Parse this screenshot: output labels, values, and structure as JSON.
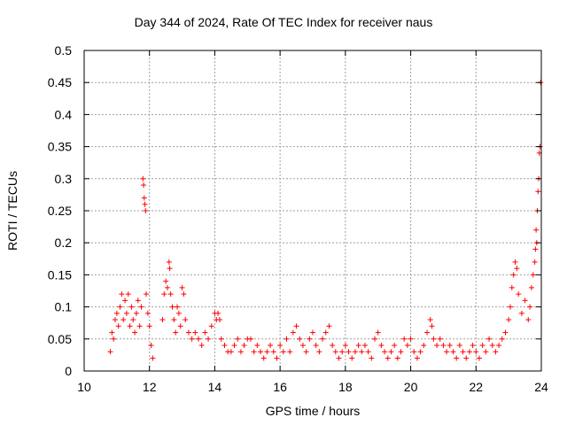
{
  "chart_data": {
    "type": "scatter",
    "title": "Day 344 of 2024, Rate Of TEC Index for receiver naus",
    "xlabel": "GPS time / hours",
    "ylabel": "ROTI / TECUs",
    "xlim": [
      10,
      24
    ],
    "ylim": [
      0,
      0.5
    ],
    "xticks": [
      "10",
      "12",
      "14",
      "16",
      "18",
      "20",
      "22",
      "24"
    ],
    "yticks": [
      "0",
      "0.05",
      "0.1",
      "0.15",
      "0.2",
      "0.25",
      "0.3",
      "0.35",
      "0.4",
      "0.45",
      "0.5"
    ],
    "grid": true,
    "marker": "+",
    "marker_color": "#ff0000",
    "series": [
      {
        "x": [
          10.8,
          10.85,
          10.9,
          10.95,
          11.0,
          11.05,
          11.1,
          11.15,
          11.2,
          11.25,
          11.3,
          11.35,
          11.4,
          11.45,
          11.5,
          11.55,
          11.6,
          11.65,
          11.7,
          11.75,
          11.8,
          11.82,
          11.84,
          11.86,
          11.88,
          11.9,
          11.95,
          12.0,
          12.05,
          12.1,
          12.4,
          12.45,
          12.5,
          12.55,
          12.6,
          12.62,
          12.65,
          12.7,
          12.75,
          12.8,
          12.85,
          12.9,
          12.95,
          13.0,
          13.05,
          13.1,
          13.2,
          13.3,
          13.4,
          13.5,
          13.6,
          13.7,
          13.8,
          13.9,
          14.0,
          14.05,
          14.1,
          14.15,
          14.2,
          14.3,
          14.4,
          14.5,
          14.6,
          14.7,
          14.8,
          14.9,
          15.0,
          15.1,
          15.2,
          15.3,
          15.4,
          15.5,
          15.6,
          15.7,
          15.8,
          15.9,
          16.0,
          16.1,
          16.2,
          16.3,
          16.4,
          16.5,
          16.6,
          16.7,
          16.8,
          16.9,
          17.0,
          17.1,
          17.2,
          17.3,
          17.4,
          17.5,
          17.6,
          17.7,
          17.8,
          17.9,
          18.0,
          18.1,
          18.2,
          18.3,
          18.4,
          18.5,
          18.6,
          18.7,
          18.8,
          18.9,
          19.0,
          19.1,
          19.2,
          19.3,
          19.4,
          19.5,
          19.6,
          19.7,
          19.8,
          19.9,
          20.0,
          20.1,
          20.2,
          20.3,
          20.4,
          20.5,
          20.6,
          20.65,
          20.7,
          20.8,
          20.9,
          21.0,
          21.1,
          21.2,
          21.3,
          21.4,
          21.5,
          21.6,
          21.7,
          21.8,
          21.9,
          22.0,
          22.1,
          22.2,
          22.3,
          22.4,
          22.5,
          22.6,
          22.7,
          22.8,
          22.9,
          23.0,
          23.05,
          23.1,
          23.15,
          23.2,
          23.25,
          23.3,
          23.4,
          23.5,
          23.6,
          23.65,
          23.7,
          23.75,
          23.8,
          23.82,
          23.84,
          23.86,
          23.88,
          23.9,
          23.92,
          23.94,
          23.96,
          23.98
        ],
        "y": [
          0.03,
          0.06,
          0.05,
          0.08,
          0.09,
          0.07,
          0.1,
          0.12,
          0.08,
          0.11,
          0.09,
          0.12,
          0.07,
          0.1,
          0.08,
          0.06,
          0.09,
          0.11,
          0.07,
          0.1,
          0.3,
          0.29,
          0.27,
          0.26,
          0.25,
          0.12,
          0.09,
          0.07,
          0.04,
          0.02,
          0.08,
          0.12,
          0.14,
          0.13,
          0.17,
          0.16,
          0.12,
          0.1,
          0.08,
          0.06,
          0.1,
          0.09,
          0.07,
          0.13,
          0.12,
          0.08,
          0.06,
          0.05,
          0.06,
          0.05,
          0.04,
          0.06,
          0.05,
          0.07,
          0.09,
          0.08,
          0.09,
          0.08,
          0.05,
          0.04,
          0.03,
          0.03,
          0.04,
          0.05,
          0.03,
          0.04,
          0.05,
          0.05,
          0.03,
          0.04,
          0.03,
          0.02,
          0.03,
          0.04,
          0.03,
          0.02,
          0.04,
          0.03,
          0.05,
          0.03,
          0.06,
          0.07,
          0.05,
          0.04,
          0.03,
          0.05,
          0.06,
          0.04,
          0.03,
          0.05,
          0.06,
          0.07,
          0.04,
          0.03,
          0.02,
          0.03,
          0.04,
          0.03,
          0.02,
          0.03,
          0.04,
          0.03,
          0.04,
          0.03,
          0.02,
          0.05,
          0.06,
          0.04,
          0.03,
          0.02,
          0.03,
          0.04,
          0.02,
          0.03,
          0.05,
          0.04,
          0.05,
          0.03,
          0.02,
          0.03,
          0.04,
          0.06,
          0.08,
          0.07,
          0.05,
          0.04,
          0.05,
          0.04,
          0.03,
          0.04,
          0.03,
          0.02,
          0.04,
          0.03,
          0.02,
          0.03,
          0.04,
          0.03,
          0.02,
          0.04,
          0.03,
          0.05,
          0.04,
          0.03,
          0.04,
          0.05,
          0.06,
          0.08,
          0.1,
          0.13,
          0.15,
          0.17,
          0.16,
          0.12,
          0.09,
          0.11,
          0.08,
          0.1,
          0.13,
          0.15,
          0.17,
          0.19,
          0.22,
          0.2,
          0.25,
          0.28,
          0.3,
          0.34,
          0.35,
          0.45
        ]
      }
    ]
  }
}
